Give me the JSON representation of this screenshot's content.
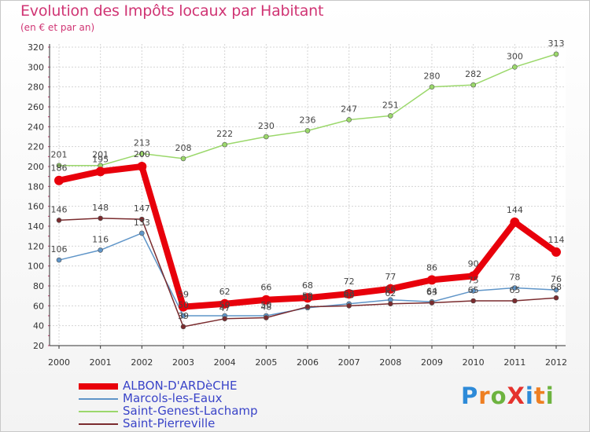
{
  "title": "Evolution des Impôts locaux par Habitant",
  "subtitle": "(en € et par an)",
  "logo_text": "ProXiti",
  "logo_colors": [
    "#2d8ad8",
    "#ee7f22",
    "#6db33f",
    "#e5322d",
    "#2d8ad8",
    "#ee7f22",
    "#6db33f"
  ],
  "chart_data": {
    "type": "line",
    "title": "Evolution des Impôts locaux par Habitant",
    "subtitle": "(en € et par an)",
    "x": [
      2000,
      2001,
      2002,
      2003,
      2004,
      2005,
      2006,
      2007,
      2008,
      2009,
      2010,
      2011,
      2012
    ],
    "ylim": [
      20,
      320
    ],
    "yticks": [
      20,
      40,
      60,
      80,
      100,
      120,
      140,
      160,
      180,
      200,
      220,
      240,
      260,
      280,
      300,
      320
    ],
    "grid": true,
    "legend_position": "bottom-left",
    "series": [
      {
        "name": "ALBON-D'ARDèCHE",
        "color": "#e8000b",
        "values": [
          186,
          195,
          200,
          59,
          62,
          66,
          68,
          72,
          77,
          86,
          90,
          144,
          114
        ],
        "labels": [
          "186",
          "195",
          "200",
          "59",
          "62",
          "66",
          "68",
          "72",
          "77",
          "86",
          "90",
          "144",
          "114"
        ]
      },
      {
        "name": "Marcols-les-Eaux",
        "color": "#5f95c8",
        "values": [
          106,
          116,
          133,
          50,
          50,
          50,
          58,
          62,
          66,
          64,
          75,
          78,
          76
        ],
        "labels": [
          "106",
          "116",
          "133",
          "50",
          "50",
          "50",
          "58",
          "62",
          "66",
          "64",
          "75",
          "78",
          "76"
        ]
      },
      {
        "name": "Saint-Genest-Lachamp",
        "color": "#9bd86b",
        "values": [
          201,
          201,
          213,
          208,
          222,
          230,
          236,
          247,
          251,
          280,
          282,
          300,
          313
        ],
        "labels": [
          "201",
          "201",
          "213",
          "208",
          "222",
          "230",
          "236",
          "247",
          "251",
          "280",
          "282",
          "300",
          "313"
        ]
      },
      {
        "name": "Saint-Pierreville",
        "color": "#7a2b2e",
        "values": [
          146,
          148,
          147,
          39,
          47,
          48,
          59,
          60,
          62,
          63,
          65,
          65,
          68
        ],
        "labels": [
          "146",
          "148",
          "147",
          "39",
          "47",
          "48",
          "59",
          "60",
          "62",
          "63",
          "65",
          "65",
          "68"
        ]
      }
    ]
  }
}
